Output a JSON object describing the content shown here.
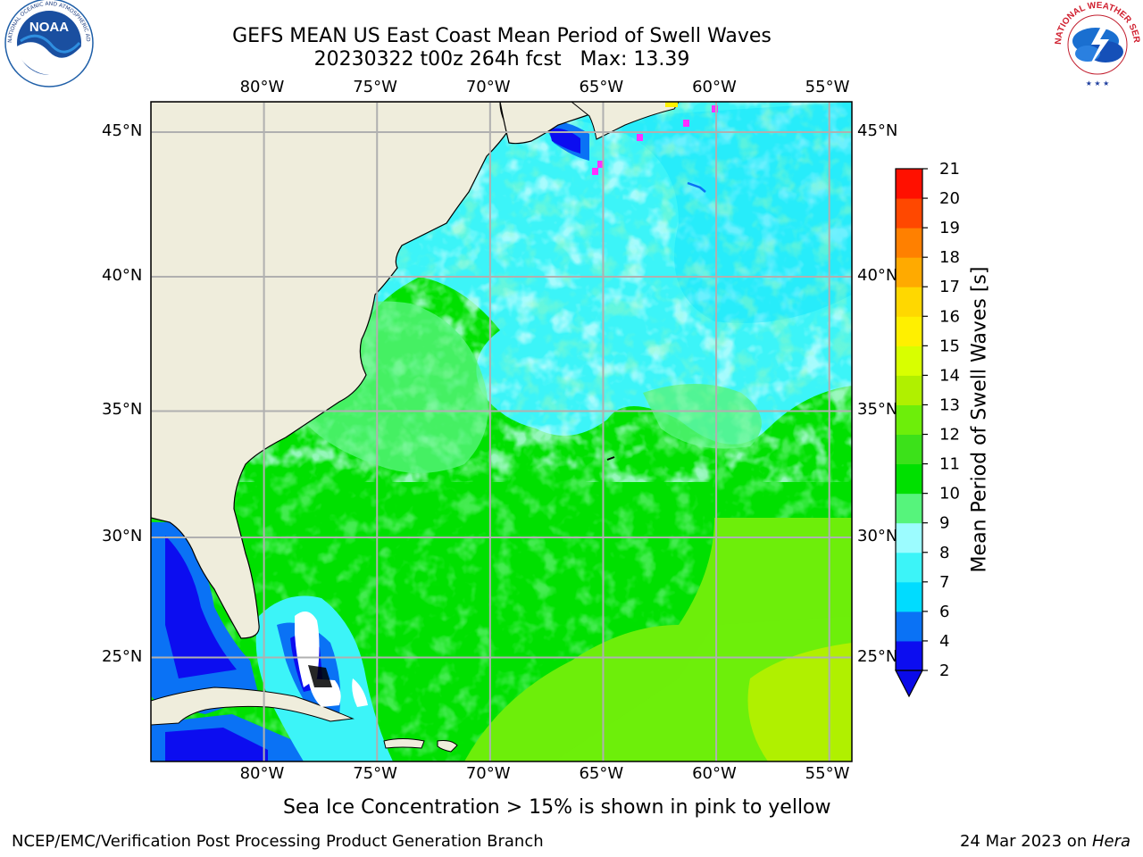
{
  "header": {
    "title_line1": "GEFS MEAN US East Coast Mean Period of Swell Waves",
    "title_line2": "20230322 t00z 264h fcst   Max: 13.39"
  },
  "logos": {
    "left": "NOAA",
    "left_ring_text": "NATIONAL OCEANIC AND ATMOSPHERIC ADMINISTRATION · U.S. DEPARTMENT OF COMMERCE",
    "right_ring_text": "NATIONAL WEATHER SERVICE"
  },
  "map": {
    "extent": {
      "lon_min": -85,
      "lon_max": -54,
      "lat_min": 20.5,
      "lat_max": 46
    },
    "lon_ticks": [
      "80°W",
      "75°W",
      "70°W",
      "65°W",
      "60°W",
      "55°W"
    ],
    "lat_ticks": [
      "45°N",
      "40°N",
      "35°N",
      "30°N",
      "25°N"
    ],
    "lon_tick_values": [
      -80,
      -75,
      -70,
      -65,
      -60,
      -55
    ],
    "lat_tick_values": [
      45,
      40,
      35,
      30,
      25
    ],
    "land_color": "#efeddc",
    "grid_color": "#b0b0b0"
  },
  "colorbar": {
    "label": "Mean Period of Swell Waves [s]",
    "ticks": [
      "2",
      "4",
      "6",
      "7",
      "8",
      "9",
      "10",
      "11",
      "12",
      "13",
      "14",
      "15",
      "16",
      "17",
      "18",
      "19",
      "20",
      "21"
    ],
    "colors": [
      "#0c0df0",
      "#0a72f5",
      "#00dcff",
      "#3cf4f8",
      "#9cfcff",
      "#56f47c",
      "#00e000",
      "#3ce11a",
      "#6dee0a",
      "#b0f000",
      "#d8ff00",
      "#fff000",
      "#ffd800",
      "#ffaa00",
      "#ff8000",
      "#ff4800",
      "#ff1000"
    ],
    "extend_color": "#0a0ae8"
  },
  "footer": {
    "caption": "Sea Ice Concentration > 15% is shown in pink to yellow",
    "credit": "NCEP/EMC/Verification Post Processing Product Generation Branch",
    "date": "24 Mar 2023 on ",
    "machine": "Hera"
  }
}
